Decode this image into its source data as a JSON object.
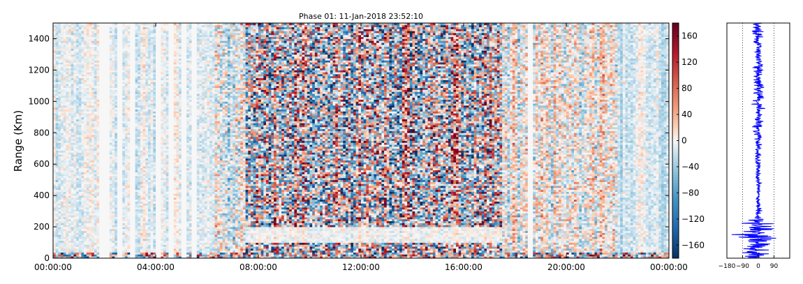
{
  "chart_data": [
    {
      "type": "heatmap",
      "title": "Phase 01: 11-Jan-2018 23:52:10",
      "ylabel": "Range (Km)",
      "xlabel": "",
      "x_tick_labels": [
        "00:00:00",
        "04:00:00",
        "08:00:00",
        "12:00:00",
        "16:00:00",
        "20:00:00",
        "00:00:00"
      ],
      "x_range_hours": [
        0,
        24
      ],
      "y_ticks": [
        0,
        200,
        400,
        600,
        800,
        1000,
        1200,
        1400
      ],
      "ylim": [
        0,
        1500
      ],
      "colormap": "RdBu_r diverging (blue = negative, red = positive)",
      "color_range": [
        -180,
        180
      ],
      "colorbar_ticks": [
        160,
        120,
        80,
        40,
        0,
        -40,
        -80,
        -120,
        -160
      ],
      "noisy_columns_hours": [
        7.5,
        17.5
      ],
      "noise_free_band_below_km": 200,
      "blank_columns_hours": [
        1.9,
        2.1,
        2.6,
        3.1,
        4.1,
        4.6,
        5.1,
        5.5,
        18.6
      ],
      "grid": false
    },
    {
      "type": "line",
      "title": "",
      "xlabel": "",
      "ylabel": "",
      "orientation": "vertical profile (x = phase, y = range)",
      "x_tick_labels": [
        "−180",
        "−90",
        "0",
        "90"
      ],
      "xlim": [
        -180,
        180
      ],
      "ylim": [
        0,
        1500
      ],
      "reference_lines_x": [
        -90,
        0,
        90
      ],
      "series_color": "#0000ff",
      "amplitude_envelope": [
        {
          "range_km": 0,
          "amplitude": 95
        },
        {
          "range_km": 200,
          "amplitude": 95
        },
        {
          "range_km": 260,
          "amplitude": 22
        },
        {
          "range_km": 400,
          "amplitude": 8
        },
        {
          "range_km": 700,
          "amplitude": 18
        },
        {
          "range_km": 1000,
          "amplitude": 28
        },
        {
          "range_km": 1300,
          "amplitude": 28
        },
        {
          "range_km": 1500,
          "amplitude": 32
        }
      ]
    }
  ]
}
